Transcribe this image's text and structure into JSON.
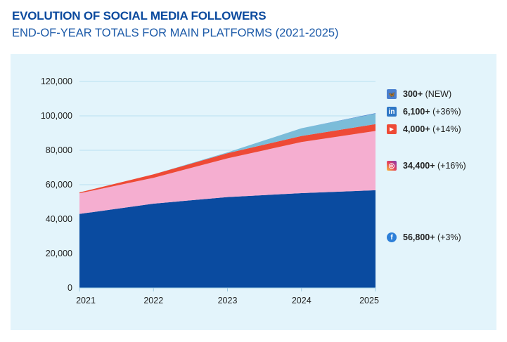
{
  "title": "EVOLUTION OF SOCIAL MEDIA FOLLOWERS",
  "subtitle": "END-OF-YEAR TOTALS FOR MAIN PLATFORMS (2021-2025)",
  "chart_data": {
    "type": "area",
    "stacked": true,
    "categories": [
      "2021",
      "2022",
      "2023",
      "2024",
      "2025"
    ],
    "ylim": [
      0,
      120000
    ],
    "yticks": [
      0,
      20000,
      40000,
      60000,
      80000,
      100000,
      120000
    ],
    "ytick_labels": [
      "0",
      "20,000",
      "40,000",
      "60,000",
      "80,000",
      "100,000",
      "120,000"
    ],
    "grid": true,
    "legend_placement": "right",
    "series": [
      {
        "key": "facebook",
        "icon": "facebook-icon",
        "color": "#0a4ba0",
        "values": [
          43000,
          49000,
          52800,
          55100,
          56800
        ],
        "label_value": "56,800+",
        "label_change": "(+3%)"
      },
      {
        "key": "instagram",
        "icon": "instagram-icon",
        "color": "#f5aed0",
        "values": [
          12000,
          15000,
          22500,
          29700,
          34400
        ],
        "label_value": "34,400+",
        "label_change": "(+16%)"
      },
      {
        "key": "youtube",
        "icon": "youtube-icon",
        "color": "#ee4a36",
        "values": [
          500,
          2000,
          3000,
          3500,
          4000
        ],
        "label_value": "4,000+",
        "label_change": "(+14%)"
      },
      {
        "key": "linkedin",
        "icon": "linkedin-icon",
        "color": "#7bbcd9",
        "values": [
          0,
          0,
          500,
          4500,
          6100
        ],
        "label_value": "6,100+",
        "label_change": "(+36%)"
      },
      {
        "key": "bluesky",
        "icon": "bluesky-icon",
        "color": "#4a7fcf",
        "values": [
          0,
          0,
          0,
          0,
          300
        ],
        "label_value": "300+",
        "label_change": "(NEW)"
      }
    ]
  }
}
